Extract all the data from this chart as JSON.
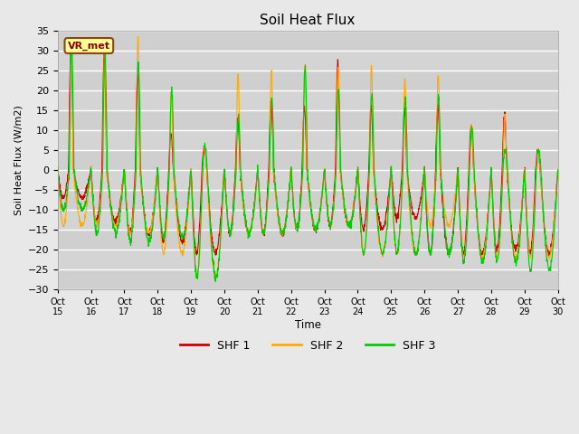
{
  "title": "Soil Heat Flux",
  "ylabel": "Soil Heat Flux (W/m2)",
  "xlabel": "Time",
  "ylim": [
    -30,
    35
  ],
  "legend_labels": [
    "SHF 1",
    "SHF 2",
    "SHF 3"
  ],
  "watermark_text": "VR_met",
  "x_tick_labels": [
    "Oct 15",
    "Oct 16",
    "Oct 17",
    "Oct 18",
    "Oct 19",
    "Oct 20",
    "Oct 21",
    "Oct 22",
    "Oct 23",
    "Oct 24",
    "Oct 25",
    "Oct 26",
    "Oct 27",
    "Oct 28",
    "Oct 29",
    "Oct 30"
  ],
  "shf1_color": "#cc0000",
  "shf2_color": "#ffaa00",
  "shf3_color": "#00cc00",
  "n_days": 15,
  "points_per_day": 144,
  "day_peaks_pos_shf2": [
    31,
    29,
    33,
    19,
    6,
    24,
    25,
    26,
    26,
    26,
    23,
    24,
    11,
    14,
    5
  ],
  "day_peaks_pos_shf1": [
    31,
    29,
    24,
    9,
    6,
    13,
    17,
    16,
    27,
    16,
    15,
    16,
    11,
    14,
    5
  ],
  "day_peaks_pos_shf3": [
    32,
    29,
    27,
    20,
    6,
    13,
    18,
    26,
    20,
    19,
    18,
    18,
    11,
    5,
    5
  ],
  "day_troughs_shf1": [
    -7,
    -13,
    -16,
    -18,
    -21,
    -16,
    -16,
    -15,
    -14,
    -15,
    -12,
    -21,
    -21,
    -20,
    -21
  ],
  "day_troughs_shf2": [
    -14,
    -14,
    -16,
    -21,
    -27,
    -16,
    -16,
    -15,
    -14,
    -21,
    -21,
    -14,
    -22,
    -22,
    -22
  ],
  "day_troughs_shf3": [
    -10,
    -16,
    -18,
    -17,
    -27,
    -16,
    -16,
    -15,
    -14,
    -21,
    -21,
    -21,
    -23,
    -23,
    -25
  ]
}
